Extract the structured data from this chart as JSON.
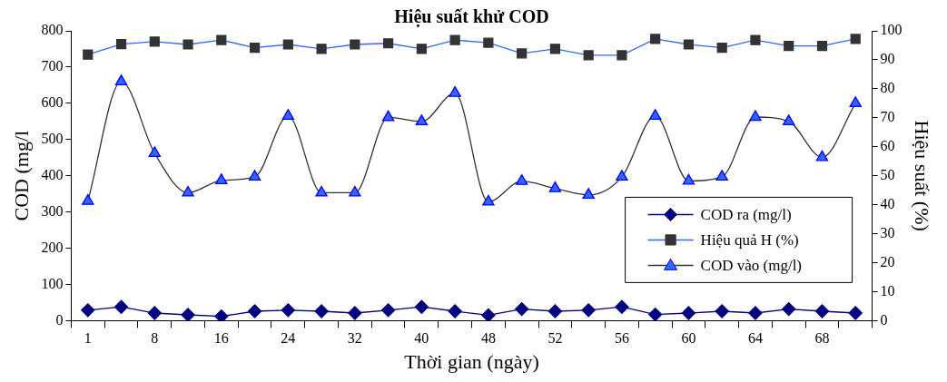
{
  "chart_data": {
    "type": "line",
    "title": "Hiệu suất khử COD",
    "xlabel": "Thời gian (ngày)",
    "ylabel": "COD (mg/l",
    "y2label": "Hiệu suất (%)",
    "categories": [
      "1",
      null,
      "8",
      null,
      "16",
      null,
      "24",
      null,
      "32",
      null,
      "40",
      null,
      "48",
      null,
      "52",
      null,
      "56",
      null,
      "60",
      null,
      "64",
      null,
      "68",
      null
    ],
    "series": [
      {
        "name": "COD ra (mg/l)",
        "color": "#000080",
        "marker": "diamond",
        "values": [
          29,
          38,
          21,
          16,
          12,
          26,
          29,
          26,
          21,
          29,
          38,
          26,
          15,
          32,
          26,
          29,
          38,
          17,
          21,
          26,
          21,
          32,
          26,
          21
        ]
      },
      {
        "name": "Hiệu quả H (%)",
        "color": "#3366ff",
        "marker": "square",
        "axis": "y2",
        "values": [
          91.8,
          95.4,
          96.3,
          95.3,
          96.8,
          94.2,
          95.3,
          93.8,
          95.3,
          95.7,
          93.8,
          96.8,
          95.9,
          92.2,
          93.8,
          91.6,
          91.6,
          97.2,
          95.3,
          94.2,
          96.8,
          94.8,
          94.8,
          97.2
        ]
      },
      {
        "name": "COD vào (mg/l)",
        "color": "#333333",
        "marker": "triangle",
        "values": [
          330,
          660,
          462,
          353,
          387,
          397,
          565,
          353,
          353,
          561,
          550,
          628,
          328,
          385,
          365,
          347,
          397,
          565,
          386,
          397,
          562,
          550,
          451,
          600
        ]
      }
    ],
    "ylim": [
      0,
      800
    ],
    "yticks": [
      0,
      100,
      200,
      300,
      400,
      500,
      600,
      700,
      800
    ],
    "y2lim": [
      0,
      100
    ],
    "y2ticks": [
      0,
      10,
      20,
      30,
      40,
      50,
      60,
      70,
      80,
      90,
      100
    ],
    "grid": false,
    "legend": "bottom right"
  }
}
